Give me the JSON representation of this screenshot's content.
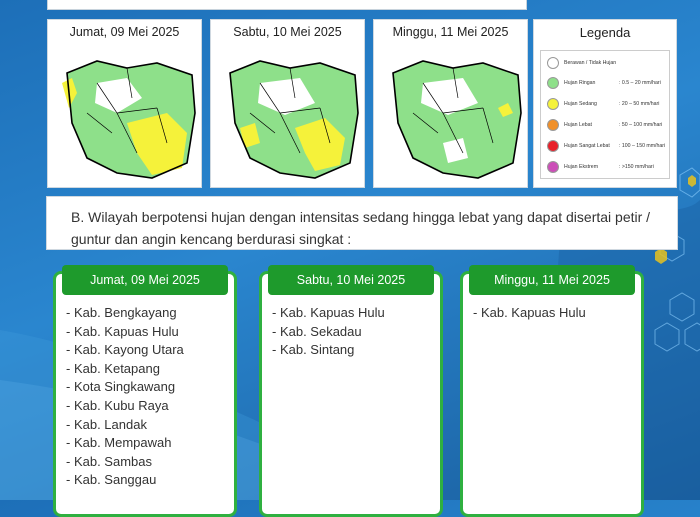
{
  "maps": [
    {
      "date": "Jumat, 09 Mei 2025"
    },
    {
      "date": "Sabtu, 10 Mei 2025"
    },
    {
      "date": "Minggu, 11 Mei 2025"
    }
  ],
  "legend": {
    "title": "Legenda",
    "items": [
      {
        "name": "Berawan / Tidak Hujan",
        "range": "",
        "color": "#ffffff"
      },
      {
        "name": "Hujan Ringan",
        "range": ": 0.5 – 20 mm/hari",
        "color": "#8ee08a"
      },
      {
        "name": "Hujan Sedang",
        "range": ": 20 – 50 mm/hari",
        "color": "#f5f23a"
      },
      {
        "name": "Hujan Lebat",
        "range": ": 50 – 100 mm/hari",
        "color": "#f0902a"
      },
      {
        "name": "Hujan Sangat Lebat",
        "range": ": 100 – 150 mm/hari",
        "color": "#e8202a"
      },
      {
        "name": "Hujan Ekstrem",
        "range": ": >150 mm/hari",
        "color": "#cc4fb8"
      }
    ]
  },
  "section_b": {
    "text": "B. Wilayah berpotensi hujan dengan intensitas sedang hingga lebat yang dapat disertai petir / guntur dan angin kencang berdurasi singkat :"
  },
  "cards": [
    {
      "date": "Jumat, 09 Mei 2025",
      "items": [
        "- Kab. Bengkayang",
        "- Kab. Kapuas Hulu",
        "- Kab. Kayong Utara",
        "- Kab. Ketapang",
        "- Kota Singkawang",
        "- Kab. Kubu Raya",
        "- Kab. Landak",
        "- Kab. Mempawah",
        "- Kab. Sambas",
        "- Kab. Sanggau"
      ]
    },
    {
      "date": "Sabtu, 10 Mei 2025",
      "items": [
        "- Kab. Kapuas Hulu",
        "- Kab. Sekadau",
        "- Kab. Sintang"
      ]
    },
    {
      "date": "Minggu, 11 Mei 2025",
      "items": [
        "- Kab. Kapuas Hulu"
      ]
    }
  ]
}
